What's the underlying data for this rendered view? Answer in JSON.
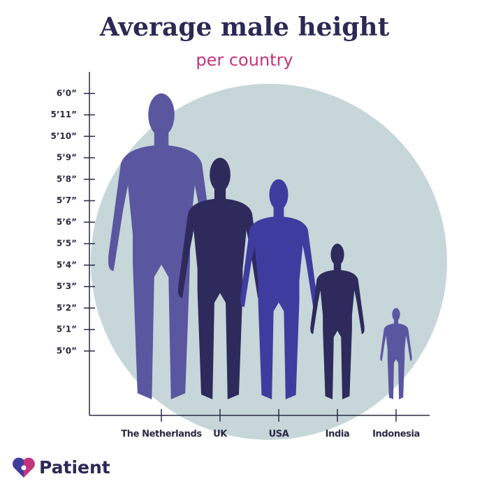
{
  "chart_data": {
    "type": "pictogram",
    "title": "Average male height",
    "subtitle": "per country",
    "categories": [
      "The Netherlands",
      "UK",
      "USA",
      "India",
      "Indonesia"
    ],
    "values": [
      72,
      69,
      68,
      65,
      62
    ],
    "colors": [
      "#5b56a0",
      "#2e2a5c",
      "#3f3ca0",
      "#2e2a5c",
      "#5b56a0"
    ],
    "ylim": [
      57,
      73
    ],
    "yticks": [
      {
        "value": 60,
        "label": "5’0”"
      },
      {
        "value": 61,
        "label": "5’1”"
      },
      {
        "value": 62,
        "label": "5’2”"
      },
      {
        "value": 63,
        "label": "5’3”"
      },
      {
        "value": 64,
        "label": "5’4”"
      },
      {
        "value": 65,
        "label": "5’5”"
      },
      {
        "value": 66,
        "label": "5’6”"
      },
      {
        "value": 67,
        "label": "5’7”"
      },
      {
        "value": 68,
        "label": "5’8”"
      },
      {
        "value": 69,
        "label": "5’9”"
      },
      {
        "value": 70,
        "label": "5’10”"
      },
      {
        "value": 71,
        "label": "5’11”"
      },
      {
        "value": 72,
        "label": "6’0”"
      }
    ],
    "logo": "Patient"
  }
}
